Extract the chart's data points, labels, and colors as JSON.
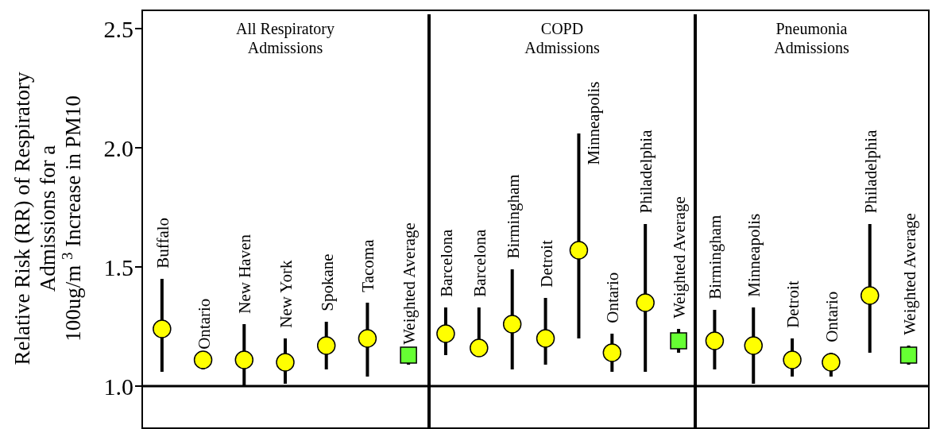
{
  "chart_data": [
    {
      "type": "scatter",
      "title": "All Respiratory\nAdmissions",
      "ylabel": "Relative Risk (RR) of Respiratory\nAdmissions for a\n100ug/m $^{3}$ Increase in PM10",
      "categories": [
        "Buffalo",
        "Ontario",
        "New Haven",
        "New York",
        "Spokane",
        "Tacoma",
        "Weighted Average"
      ],
      "ylim": [
        0.83,
        2.58
      ],
      "yticks": [
        {
          "value": 1,
          "label": "1.0"
        },
        {
          "value": 1.5,
          "label": "1.5"
        },
        {
          "value": 2,
          "label": "2.0"
        },
        {
          "value": 2.5,
          "label": "2.5"
        }
      ],
      "tick_labels": "y",
      "ref_lines": [
        {
          "axis": "y",
          "value": 1
        }
      ],
      "series": [
        {
          "color": "#ffff00",
          "marker": "circle",
          "values": [
            1.24,
            1.11,
            1.11,
            1.1,
            1.17,
            1.2,
            null
          ],
          "errors": [
            [
              1.06,
              1.45
            ],
            [
              1.07,
              1.11
            ],
            [
              1.0,
              1.26
            ],
            [
              1.01,
              1.2
            ],
            [
              1.07,
              1.27
            ],
            [
              1.04,
              1.35
            ],
            null
          ]
        },
        {
          "color": "#66ff33",
          "marker": "square",
          "values": [
            null,
            null,
            null,
            null,
            null,
            null,
            1.13
          ],
          "errors": [
            null,
            null,
            null,
            null,
            null,
            null,
            [
              1.09,
              1.13
            ]
          ]
        }
      ]
    },
    {
      "type": "scatter",
      "title": "COPD\nAdmissions",
      "categories": [
        "Barcelona",
        "Barcelona",
        "Birmingham",
        "Detroit",
        "Minneapolis",
        "Ontario",
        "Philadelphia",
        "Weighted Average"
      ],
      "ylim": [
        0.83,
        2.58
      ],
      "tick_labels": false,
      "ref_lines": [
        {
          "axis": "y",
          "value": 1
        }
      ],
      "series": [
        {
          "color": "#ffff00",
          "marker": "circle",
          "values": [
            1.22,
            1.16,
            1.26,
            1.2,
            1.57,
            1.14,
            1.35,
            null
          ],
          "errors": [
            [
              1.13,
              1.33
            ],
            [
              1.13,
              1.33
            ],
            [
              1.07,
              1.49
            ],
            [
              1.09,
              1.37
            ],
            [
              1.2,
              2.06
            ],
            [
              1.06,
              1.22
            ],
            [
              1.06,
              1.68
            ],
            null
          ]
        },
        {
          "color": "#66ff33",
          "marker": "square",
          "values": [
            null,
            null,
            null,
            null,
            null,
            null,
            null,
            1.19
          ],
          "errors": [
            null,
            null,
            null,
            null,
            null,
            null,
            null,
            [
              1.14,
              1.24
            ]
          ]
        }
      ]
    },
    {
      "type": "scatter",
      "title": "Pneumonia\nAdmissions",
      "categories": [
        "Birmingham",
        "Minneapolis",
        "Detroit",
        "Ontario",
        "Philadelphia",
        "Weighted Average"
      ],
      "ylim": [
        0.83,
        2.58
      ],
      "tick_labels": false,
      "ref_lines": [
        {
          "axis": "y",
          "value": 1
        }
      ],
      "series": [
        {
          "color": "#ffff00",
          "marker": "circle",
          "values": [
            1.19,
            1.17,
            1.11,
            1.1,
            1.38,
            null
          ],
          "errors": [
            [
              1.07,
              1.32
            ],
            [
              1.01,
              1.33
            ],
            [
              1.04,
              1.2
            ],
            [
              1.04,
              1.14
            ],
            [
              1.14,
              1.68
            ],
            null
          ]
        },
        {
          "color": "#66ff33",
          "marker": "square",
          "values": [
            null,
            null,
            null,
            null,
            null,
            1.13
          ],
          "errors": [
            null,
            null,
            null,
            null,
            null,
            [
              1.09,
              1.17
            ]
          ]
        }
      ]
    }
  ]
}
